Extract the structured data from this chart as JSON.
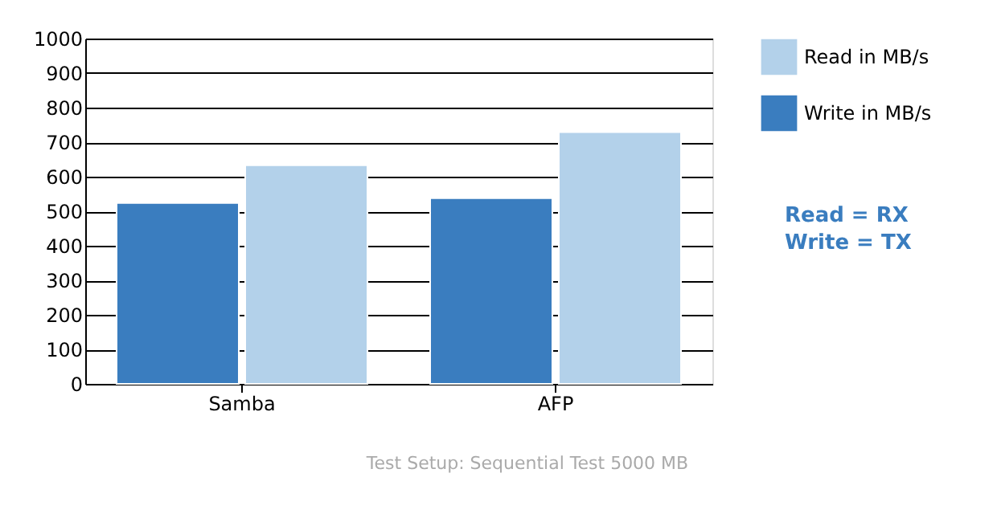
{
  "chart_data": {
    "type": "bar",
    "categories": [
      "Samba",
      "AFP"
    ],
    "series": [
      {
        "name": "Write in MB/s",
        "color": "#3a7dbf",
        "values": [
          524,
          538
        ]
      },
      {
        "name": "Read in MB/s",
        "color": "#b3d1ea",
        "values": [
          633,
          729
        ]
      }
    ],
    "ylim": [
      0,
      1000
    ],
    "yticks": [
      0,
      100,
      200,
      300,
      400,
      500,
      600,
      700,
      800,
      900,
      1000
    ],
    "grid": "y",
    "legend": "top right",
    "annotations": [
      "Read = RX",
      "Write = TX",
      "Test Setup: Sequential Test 5000 MB"
    ]
  }
}
